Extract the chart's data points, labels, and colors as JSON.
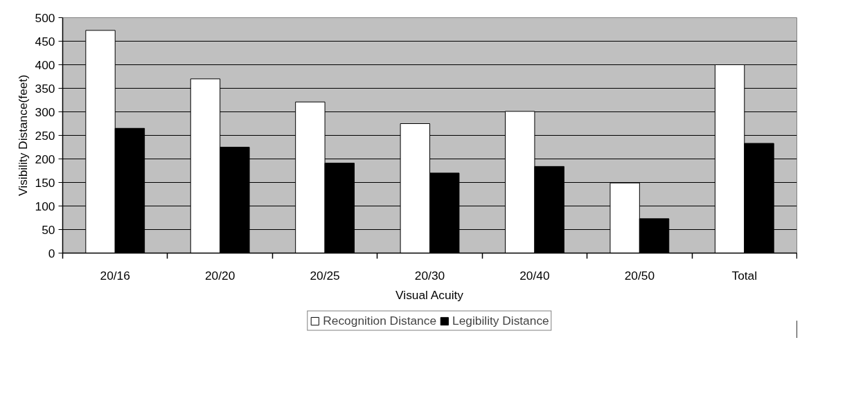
{
  "chart_data": {
    "type": "bar",
    "xlabel": "Visual Acuity",
    "ylabel": "Visibility Distance(feet)",
    "categories": [
      "20/16",
      "20/20",
      "20/25",
      "20/30",
      "20/40",
      "20/50",
      "Total"
    ],
    "series": [
      {
        "name": "Recognition Distance",
        "color": "#ffffff",
        "values": [
          473,
          370,
          321,
          275,
          301,
          149,
          400
        ]
      },
      {
        "name": "Legibility Distance",
        "color": "#000000",
        "values": [
          265,
          225,
          191,
          170,
          184,
          73,
          233
        ]
      }
    ],
    "ylim": [
      0,
      500
    ],
    "yticks": [
      0,
      50,
      100,
      150,
      200,
      250,
      300,
      350,
      400,
      450,
      500
    ],
    "grid": "y",
    "legend": "bottom"
  }
}
